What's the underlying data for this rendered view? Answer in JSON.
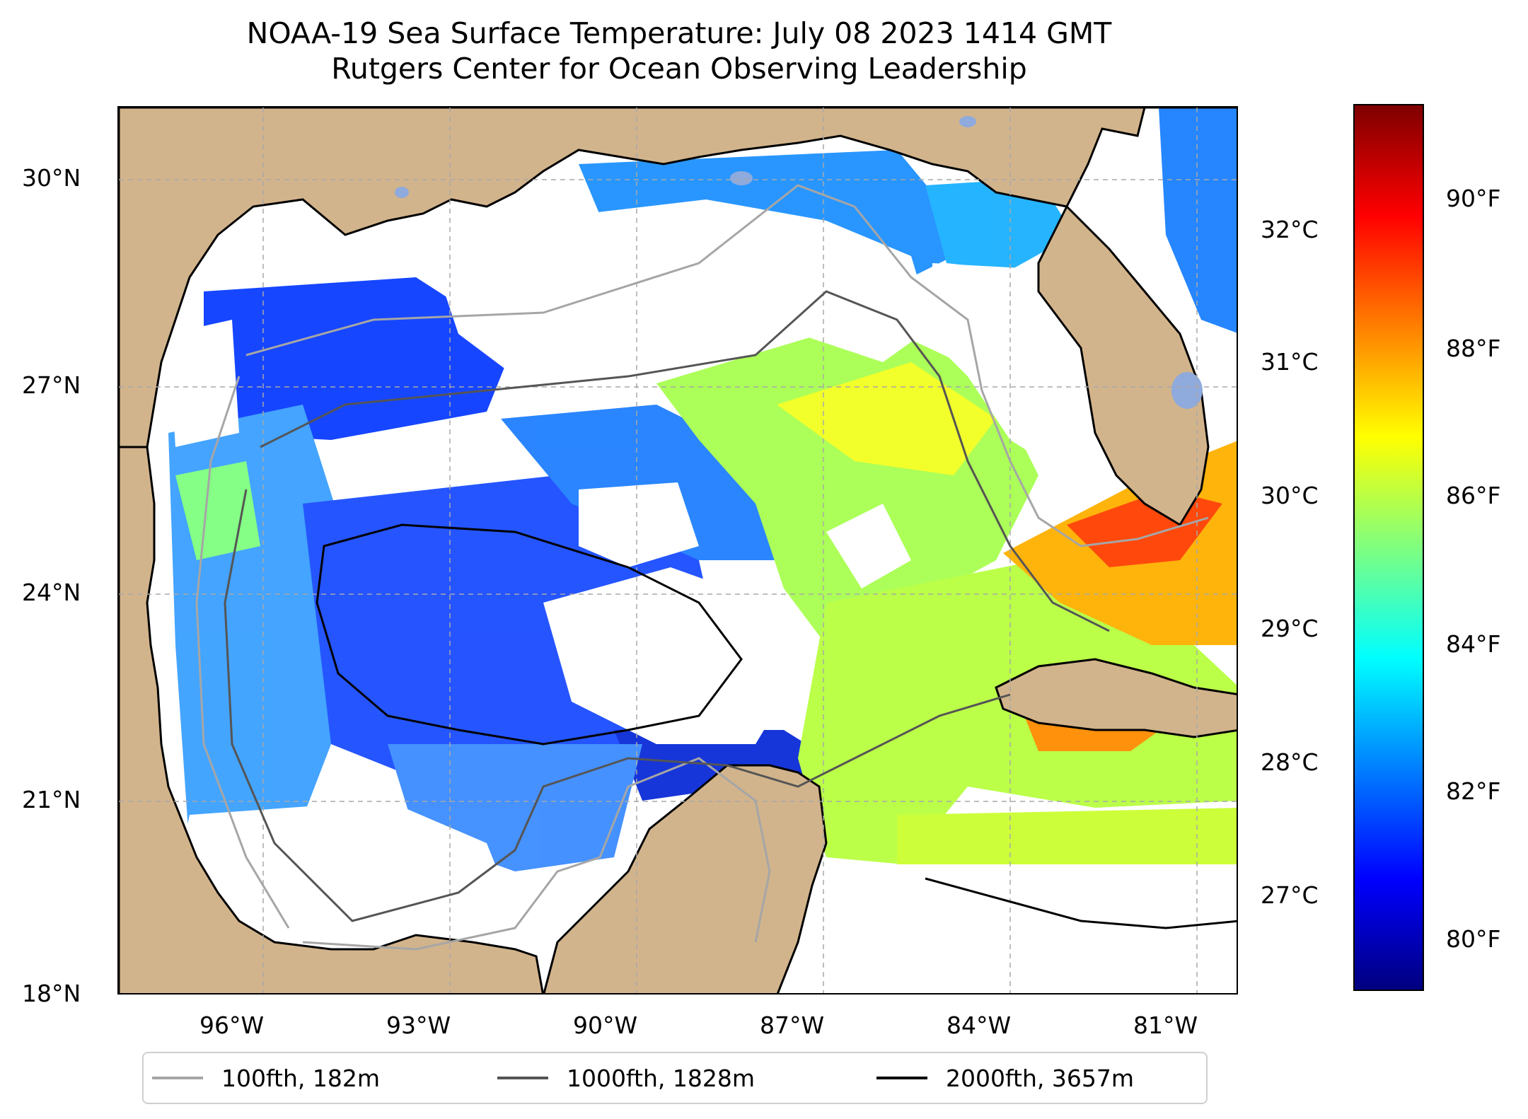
{
  "title": {
    "line1": "NOAA-19 Sea Surface Temperature: July 08 2023 1414 GMT",
    "line2": "Rutgers Center for Ocean Observing Leadership"
  },
  "map": {
    "region": "Gulf of Mexico",
    "colors": {
      "land": "#d2b48c",
      "lakes": "#8faadc",
      "nodata": "#ffffff",
      "grid": "#b0b0b0"
    },
    "lat_ticks": [
      {
        "label": "30°N",
        "value": 30
      },
      {
        "label": "27°N",
        "value": 27
      },
      {
        "label": "24°N",
        "value": 24
      },
      {
        "label": "21°N",
        "value": 21
      },
      {
        "label": "18°N",
        "value": 18
      }
    ],
    "lon_ticks": [
      {
        "label": "96°W",
        "value": -96
      },
      {
        "label": "93°W",
        "value": -93
      },
      {
        "label": "90°W",
        "value": -90
      },
      {
        "label": "87°W",
        "value": -87
      },
      {
        "label": "84°W",
        "value": -84
      },
      {
        "label": "81°W",
        "value": -81
      }
    ],
    "celsius_ticks": [
      {
        "label": "32°C",
        "value": 32
      },
      {
        "label": "31°C",
        "value": 31
      },
      {
        "label": "30°C",
        "value": 30
      },
      {
        "label": "29°C",
        "value": 29
      },
      {
        "label": "28°C",
        "value": 28
      },
      {
        "label": "27°C",
        "value": 27
      }
    ]
  },
  "colorbar": {
    "colormap": "jet",
    "colors": [
      "#00007f",
      "#0000ff",
      "#007fff",
      "#00ffff",
      "#7fff7f",
      "#ffff00",
      "#ff7f00",
      "#ff0000",
      "#7f0000"
    ],
    "fahrenheit_ticks": [
      {
        "label": "90°F",
        "value": 90
      },
      {
        "label": "88°F",
        "value": 88
      },
      {
        "label": "86°F",
        "value": 86
      },
      {
        "label": "84°F",
        "value": 84
      },
      {
        "label": "82°F",
        "value": 82
      },
      {
        "label": "80°F",
        "value": 80
      }
    ]
  },
  "legend": {
    "items": [
      {
        "label": "100fth, 182m",
        "color": "#a6a6a6"
      },
      {
        "label": "1000fth, 1828m",
        "color": "#555555"
      },
      {
        "label": "2000fth, 3657m",
        "color": "#000000"
      }
    ]
  }
}
